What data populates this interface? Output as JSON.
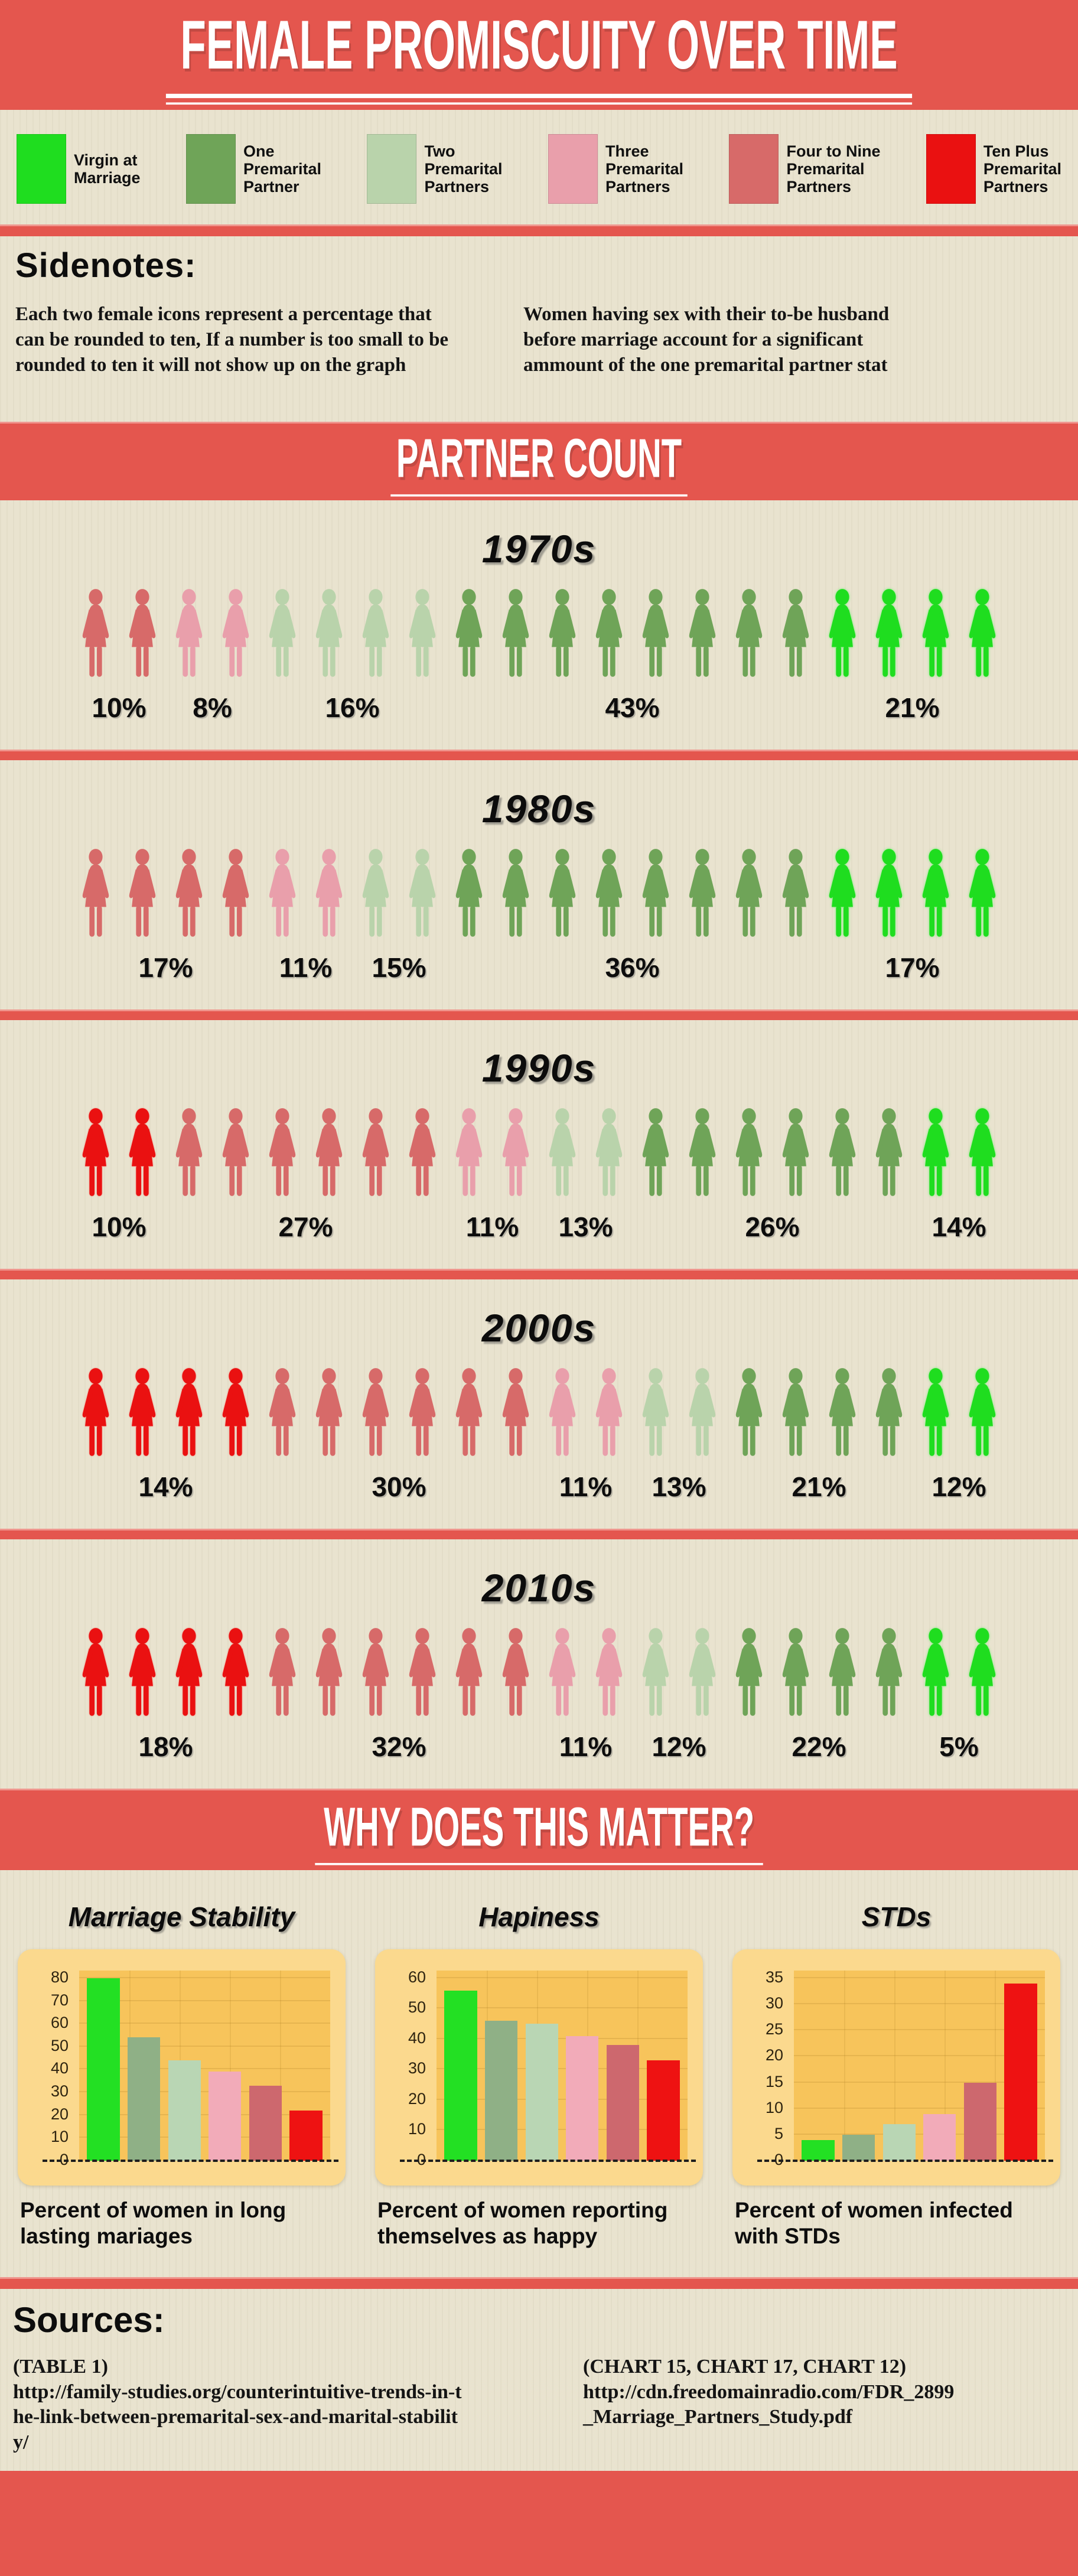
{
  "palette": {
    "band_red": "#e4564e",
    "paper": "#e9e3cf",
    "chart_panel": "#fbd98e",
    "chart_plot": "#f7c45b",
    "categories": [
      {
        "key": "virgin",
        "label": "Virgin at Marriage",
        "color": "#1fdd1f"
      },
      {
        "key": "one",
        "label": "One Premarital Partner",
        "color": "#6fa458"
      },
      {
        "key": "two",
        "label": "Two Premarital Partners",
        "color": "#b9d3ab"
      },
      {
        "key": "three",
        "label": "Three Premarital Partners",
        "color": "#e99fab"
      },
      {
        "key": "fourToNine",
        "label": "Four to Nine Premarital Partners",
        "color": "#d76a69"
      },
      {
        "key": "tenPlus",
        "label": "Ten Plus Premarital Partners",
        "color": "#ea1111"
      }
    ],
    "chart_bar_colors": [
      "#23e023",
      "#8fb086",
      "#b9d6b4",
      "#f2abb9",
      "#cd686e",
      "#ee1212"
    ]
  },
  "header": {
    "title": "FEMALE PROMISCUITY OVER TIME"
  },
  "legend": {
    "items": [
      {
        "key": "virgin",
        "lines": [
          "Virgin at",
          "Marriage"
        ]
      },
      {
        "key": "one",
        "lines": [
          "One",
          "Premarital",
          "Partner"
        ]
      },
      {
        "key": "two",
        "lines": [
          "Two",
          "Premarital",
          "Partners"
        ]
      },
      {
        "key": "three",
        "lines": [
          "Three",
          "Premarital",
          "Partners"
        ]
      },
      {
        "key": "fourToNine",
        "lines": [
          "Four to Nine",
          "Premarital",
          "Partners"
        ]
      },
      {
        "key": "tenPlus",
        "lines": [
          "Ten Plus",
          "Premarital",
          "Partners"
        ]
      }
    ]
  },
  "sidenotes": {
    "heading": "Sidenotes:",
    "note1": "Each two female icons represent a percentage that can be rounded to ten, If a number is too small to be rounded to ten it will not show up on the graph",
    "note2": "Women having sex with their to-be husband before marriage account for a significant ammount of the one premarital partner stat"
  },
  "partner_count": {
    "title": "PARTNER COUNT"
  },
  "decades": [
    {
      "label": "1970s",
      "groups": [
        {
          "cat": "fourToNine",
          "icons": 2,
          "pct": "10%"
        },
        {
          "cat": "three",
          "icons": 2,
          "pct": "8%"
        },
        {
          "cat": "two",
          "icons": 4,
          "pct": "16%"
        },
        {
          "cat": "one",
          "icons": 8,
          "pct": "43%"
        },
        {
          "cat": "virgin",
          "icons": 4,
          "pct": "21%"
        }
      ]
    },
    {
      "label": "1980s",
      "groups": [
        {
          "cat": "fourToNine",
          "icons": 4,
          "pct": "17%"
        },
        {
          "cat": "three",
          "icons": 2,
          "pct": "11%"
        },
        {
          "cat": "two",
          "icons": 2,
          "pct": "15%"
        },
        {
          "cat": "one",
          "icons": 8,
          "pct": "36%"
        },
        {
          "cat": "virgin",
          "icons": 4,
          "pct": "17%"
        }
      ]
    },
    {
      "label": "1990s",
      "groups": [
        {
          "cat": "tenPlus",
          "icons": 2,
          "pct": "10%"
        },
        {
          "cat": "fourToNine",
          "icons": 6,
          "pct": "27%"
        },
        {
          "cat": "three",
          "icons": 2,
          "pct": "11%"
        },
        {
          "cat": "two",
          "icons": 2,
          "pct": "13%"
        },
        {
          "cat": "one",
          "icons": 6,
          "pct": "26%"
        },
        {
          "cat": "virgin",
          "icons": 2,
          "pct": "14%"
        }
      ]
    },
    {
      "label": "2000s",
      "groups": [
        {
          "cat": "tenPlus",
          "icons": 4,
          "pct": "14%"
        },
        {
          "cat": "fourToNine",
          "icons": 6,
          "pct": "30%"
        },
        {
          "cat": "three",
          "icons": 2,
          "pct": "11%"
        },
        {
          "cat": "two",
          "icons": 2,
          "pct": "13%"
        },
        {
          "cat": "one",
          "icons": 4,
          "pct": "21%"
        },
        {
          "cat": "virgin",
          "icons": 2,
          "pct": "12%"
        }
      ]
    },
    {
      "label": "2010s",
      "groups": [
        {
          "cat": "tenPlus",
          "icons": 4,
          "pct": "18%"
        },
        {
          "cat": "fourToNine",
          "icons": 6,
          "pct": "32%"
        },
        {
          "cat": "three",
          "icons": 2,
          "pct": "11%"
        },
        {
          "cat": "two",
          "icons": 2,
          "pct": "12%"
        },
        {
          "cat": "one",
          "icons": 4,
          "pct": "22%"
        },
        {
          "cat": "virgin",
          "icons": 2,
          "pct": "5%"
        }
      ]
    }
  ],
  "why": {
    "title": "WHY DOES THIS MATTER?"
  },
  "chart_data": [
    {
      "type": "pictograph",
      "title": "PARTNER COUNT",
      "note": "each two female icons represent a percentage rounded to ten",
      "x": [
        "1970s",
        "1980s",
        "1990s",
        "2000s",
        "2010s"
      ],
      "series": [
        {
          "name": "Ten Plus Premarital Partners",
          "values": [
            null,
            null,
            10,
            14,
            18
          ]
        },
        {
          "name": "Four to Nine Premarital Partners",
          "values": [
            10,
            17,
            27,
            30,
            32
          ]
        },
        {
          "name": "Three Premarital Partners",
          "values": [
            8,
            11,
            11,
            11,
            11
          ]
        },
        {
          "name": "Two Premarital Partners",
          "values": [
            16,
            15,
            13,
            13,
            12
          ]
        },
        {
          "name": "One Premarital Partner",
          "values": [
            43,
            36,
            26,
            21,
            22
          ]
        },
        {
          "name": "Virgin at Marriage",
          "values": [
            21,
            17,
            14,
            12,
            5
          ]
        }
      ]
    },
    {
      "type": "bar",
      "title": "Marriage Stability",
      "categories": [
        "Virgin at Marriage",
        "One Premarital Partner",
        "Two Premarital Partners",
        "Three Premarital Partners",
        "Four to Nine Premarital Partners",
        "Ten Plus Premarital Partners"
      ],
      "values": [
        80,
        54,
        44,
        39,
        33,
        22
      ],
      "ylim": [
        0,
        80
      ],
      "ytick_step": 10,
      "grid": true,
      "legend_position": "none",
      "caption": "Percent of women in long lasting mariages"
    },
    {
      "type": "bar",
      "title": "Hapiness",
      "categories": [
        "Virgin at Marriage",
        "One Premarital Partner",
        "Two Premarital Partners",
        "Three Premarital Partners",
        "Four to Nine Premarital Partners",
        "Ten Plus Premarital Partners"
      ],
      "values": [
        56,
        46,
        45,
        41,
        38,
        33
      ],
      "ylim": [
        0,
        60
      ],
      "ytick_step": 10,
      "grid": true,
      "legend_position": "none",
      "caption": "Percent of women reporting themselves as happy"
    },
    {
      "type": "bar",
      "title": "STDs",
      "categories": [
        "Virgin at Marriage",
        "One Premarital Partner",
        "Two Premarital Partners",
        "Three Premarital Partners",
        "Four to Nine Premarital Partners",
        "Ten Plus Premarital Partners"
      ],
      "values": [
        4,
        5,
        7,
        9,
        15,
        34
      ],
      "ylim": [
        0,
        35
      ],
      "ytick_step": 5,
      "grid": true,
      "legend_position": "none",
      "caption": "Percent of women infected with STDs"
    }
  ],
  "sources": {
    "heading": "Sources:",
    "left": {
      "ref": "(TABLE 1)",
      "url": "http://family-studies.org/counterintuitive-trends-in-the-link-between-premarital-sex-and-marital-stability/"
    },
    "right": {
      "ref": "(CHART 15, CHART 17, CHART 12)",
      "url": "http://cdn.freedomainradio.com/FDR_2899_Marriage_Partners_Study.pdf"
    }
  }
}
